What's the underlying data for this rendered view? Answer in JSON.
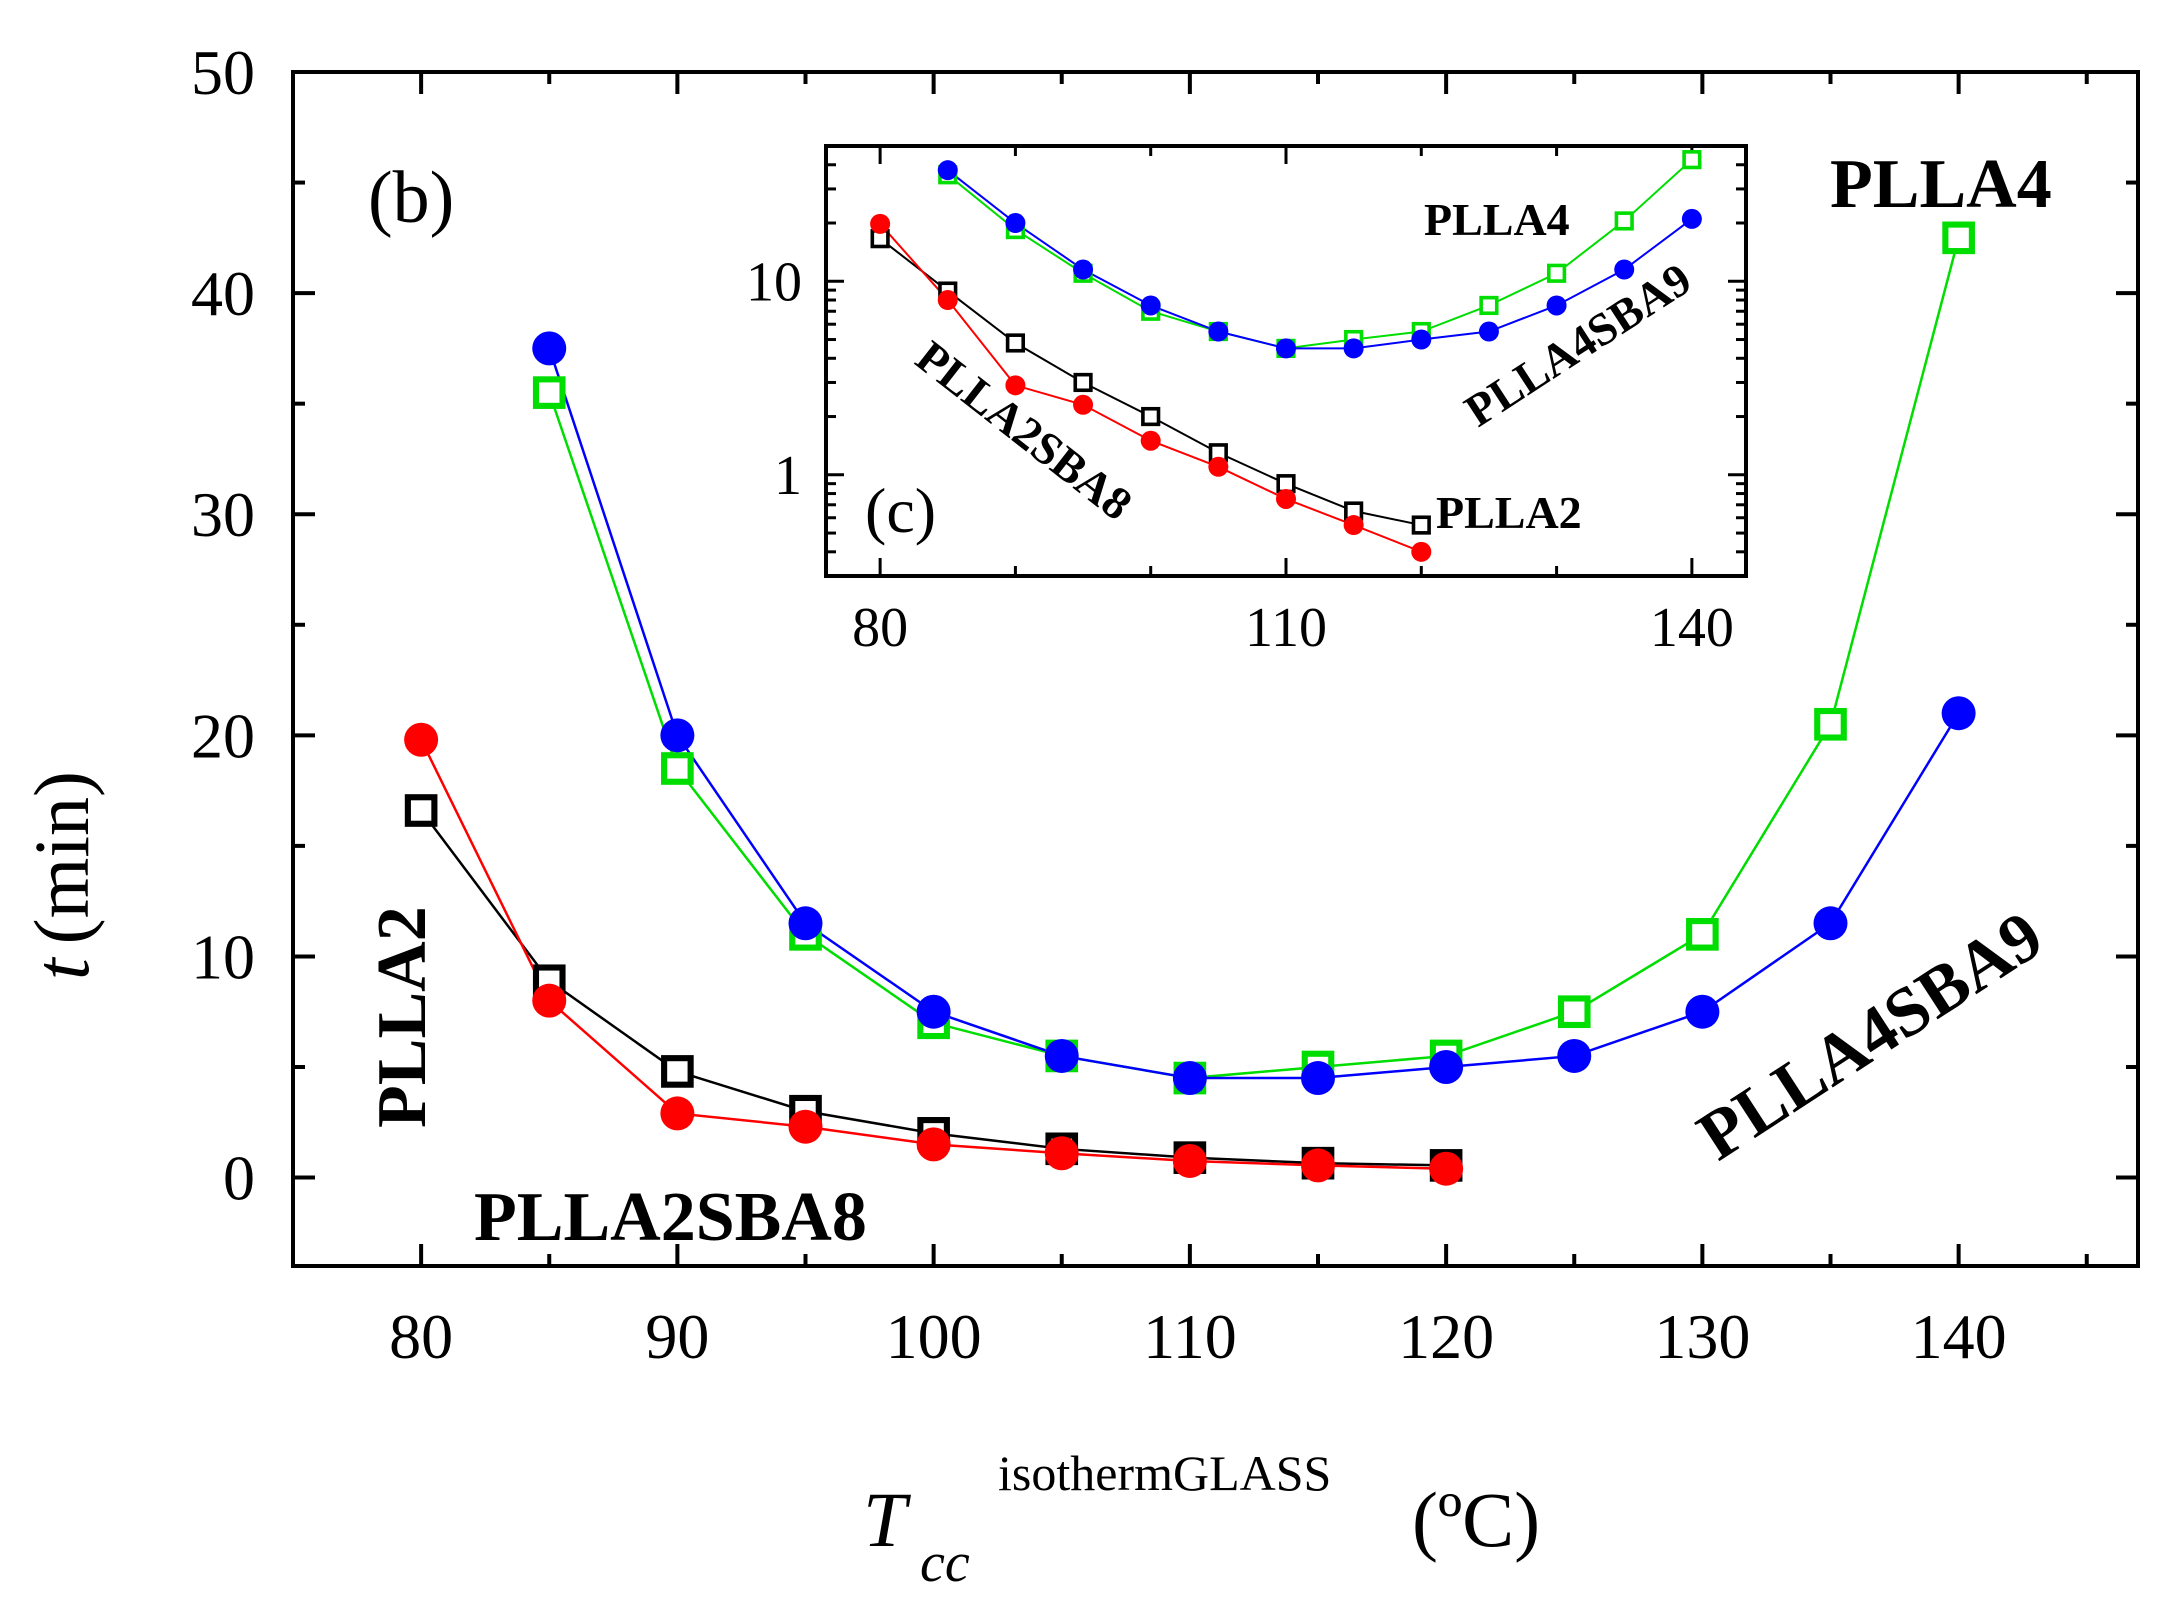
{
  "chart_data": [
    {
      "type": "line",
      "panel_label": "(b)",
      "xlabel": {
        "main": "T",
        "sub": "cc",
        "sup": "isothermGLASS",
        "unit": "(ºC)"
      },
      "ylabel": {
        "var": "t",
        "unit": "(min)"
      },
      "xlim": [
        75,
        147
      ],
      "ylim": [
        -4,
        50
      ],
      "xticks": [
        80,
        90,
        100,
        110,
        120,
        130,
        140
      ],
      "yticks": [
        0,
        10,
        20,
        30,
        40,
        50
      ],
      "series": [
        {
          "name": "PLLA2",
          "label": "PLLA2",
          "color": "#000000",
          "marker": "open-square",
          "x": [
            80,
            85,
            90,
            95,
            100,
            105,
            110,
            115,
            120
          ],
          "y": [
            16.6,
            8.9,
            4.8,
            3.0,
            2.0,
            1.3,
            0.9,
            0.65,
            0.55
          ]
        },
        {
          "name": "PLLA2SBA8",
          "label": "PLLA2SBA8",
          "color": "#ff0000",
          "marker": "filled-circle",
          "x": [
            80,
            85,
            90,
            95,
            100,
            105,
            110,
            115,
            120
          ],
          "y": [
            19.8,
            8.0,
            2.9,
            2.3,
            1.5,
            1.1,
            0.75,
            0.55,
            0.4
          ]
        },
        {
          "name": "PLLA4",
          "label": "PLLA4",
          "color": "#00dd00",
          "marker": "open-square",
          "x": [
            85,
            90,
            95,
            100,
            105,
            110,
            115,
            120,
            125,
            130,
            135,
            140
          ],
          "y": [
            35.5,
            18.5,
            11.0,
            7.0,
            5.5,
            4.5,
            5.0,
            5.5,
            7.5,
            11.0,
            20.5,
            42.5
          ]
        },
        {
          "name": "PLLA4SBA9",
          "label": "PLLA4SBA9",
          "color": "#0000ff",
          "marker": "filled-circle",
          "x": [
            85,
            90,
            95,
            100,
            105,
            110,
            115,
            120,
            125,
            130,
            135,
            140
          ],
          "y": [
            37.5,
            20.0,
            11.5,
            7.5,
            5.5,
            4.5,
            4.5,
            5.0,
            5.5,
            7.5,
            11.5,
            21.0
          ]
        }
      ]
    },
    {
      "type": "line",
      "scale": "log-y",
      "panel_label": "(c)",
      "xlim": [
        76,
        144
      ],
      "ylim": [
        0.3,
        50
      ],
      "xticks": [
        80,
        110,
        140
      ],
      "yticks": [
        1,
        10
      ],
      "series_labels": [
        "PLLA4",
        "PLLA4SBA9",
        "PLLA2SBA8",
        "PLLA2"
      ],
      "series_ref": "same data as panel (b)"
    }
  ]
}
